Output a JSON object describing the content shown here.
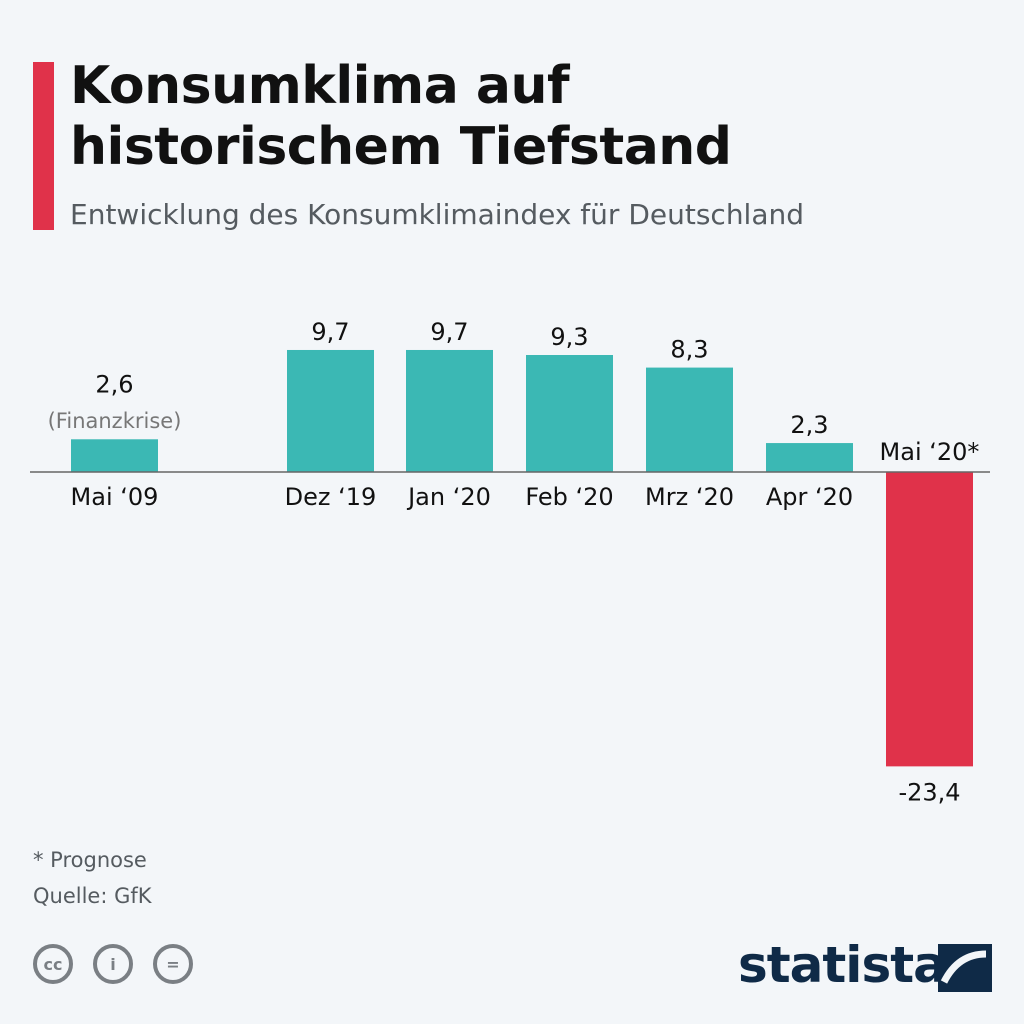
{
  "header": {
    "title_line1": "Konsumklima auf",
    "title_line2": "historischem Tiefstand",
    "subtitle": "Entwicklung des Konsumklimaindex für Deutschland"
  },
  "chart_data": {
    "type": "bar",
    "title": "Konsumklima auf historischem Tiefstand",
    "subtitle": "Entwicklung des Konsumklimaindex für Deutschland",
    "categories": [
      "Mai ‘09",
      "Dez ‘19",
      "Jan ‘20",
      "Feb ‘20",
      "Mrz ‘20",
      "Apr ‘20",
      "Mai ‘20*"
    ],
    "values": [
      2.6,
      9.7,
      9.7,
      9.3,
      8.3,
      2.3,
      -23.4
    ],
    "value_labels": [
      "2,6",
      "9,7",
      "9,7",
      "9,3",
      "8,3",
      "2,3",
      "-23,4"
    ],
    "annotations": [
      {
        "category": "Mai ‘09",
        "text": "(Finanzkrise)"
      }
    ],
    "xlabel": "",
    "ylabel": "",
    "grid": false,
    "colors": {
      "positive": "#3bb8b4",
      "negative": "#e0324a"
    }
  },
  "footer": {
    "note": "* Prognose",
    "source": "Quelle: GfK",
    "license_icons": [
      "cc",
      "by",
      "nd"
    ],
    "brand": "statista"
  }
}
